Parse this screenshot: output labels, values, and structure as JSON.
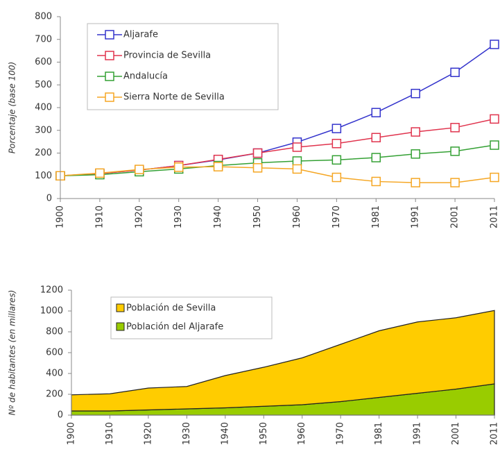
{
  "chart_data": [
    {
      "type": "line",
      "y_label": "Porcentaje (base 100)",
      "categories": [
        "1900",
        "1910",
        "1920",
        "1930",
        "1940",
        "1950",
        "1960",
        "1970",
        "1981",
        "1991",
        "2001",
        "2011"
      ],
      "ylim": [
        0,
        800
      ],
      "yticks": [
        0,
        100,
        200,
        300,
        400,
        500,
        600,
        700,
        800
      ],
      "series": [
        {
          "name": "Aljarafe",
          "color": "#3333cc",
          "values": [
            100,
            110,
            125,
            145,
            170,
            200,
            248,
            308,
            378,
            462,
            555,
            678
          ]
        },
        {
          "name": "Provincia de Sevilla",
          "color": "#e0334d",
          "values": [
            100,
            110,
            125,
            145,
            172,
            200,
            226,
            242,
            268,
            293,
            312,
            350
          ]
        },
        {
          "name": "Andalucía",
          "color": "#33a033",
          "values": [
            100,
            105,
            118,
            130,
            145,
            157,
            165,
            170,
            180,
            196,
            208,
            235
          ]
        },
        {
          "name": "Sierra Norte de Sevilla",
          "color": "#f5a623",
          "values": [
            100,
            112,
            128,
            138,
            140,
            135,
            130,
            93,
            75,
            70,
            70,
            93
          ]
        }
      ]
    },
    {
      "type": "stacked_area",
      "y_label": "Nº de habitantes (en millares)",
      "categories": [
        "1900",
        "1910",
        "1920",
        "1930",
        "1940",
        "1950",
        "1960",
        "1970",
        "1981",
        "1991",
        "2001",
        "2011"
      ],
      "ylim": [
        0,
        1200
      ],
      "yticks": [
        0,
        200,
        400,
        600,
        800,
        1000,
        1200
      ],
      "legend_order": [
        0,
        1
      ],
      "series": [
        {
          "name": "Población de Sevilla",
          "color": "#ffcc00",
          "values": [
            155,
            165,
            210,
            215,
            310,
            375,
            450,
            550,
            640,
            685,
            685,
            705
          ]
        },
        {
          "name": "Población del Aljarafe",
          "color": "#99cc00",
          "values": [
            40,
            40,
            50,
            60,
            70,
            85,
            100,
            130,
            170,
            210,
            250,
            300
          ]
        }
      ]
    }
  ]
}
